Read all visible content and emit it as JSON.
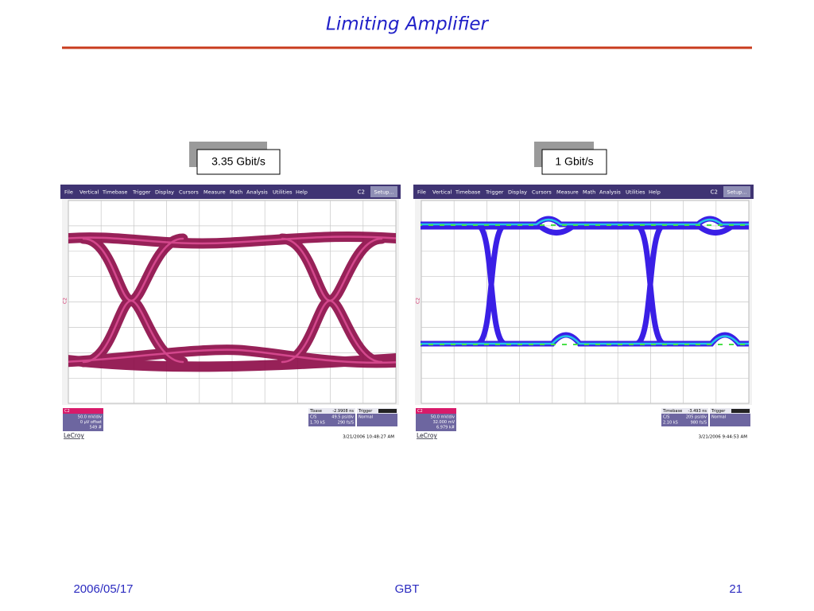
{
  "header": {
    "title": "Limiting Amplifier"
  },
  "scopes": [
    {
      "label": "3.35 Gbit/s",
      "menu": [
        "File",
        "Vertical",
        "Timebase",
        "Trigger",
        "Display",
        "Cursors",
        "Measure",
        "Math",
        "Analysis",
        "Utilities",
        "Help"
      ],
      "channel": "C2",
      "setup": "Setup...",
      "channel_info": [
        "50.0 mV/div",
        "0 µV offset",
        "549 #"
      ],
      "timebase": {
        "title": "Tbase",
        "value": "-2.9908 ns",
        "rows": [
          [
            "C/S",
            "49.5 ps/div"
          ],
          [
            "1.70 kS",
            "290 fs/S"
          ]
        ]
      },
      "trigger": {
        "title": "Trigger",
        "mode": "Normal"
      },
      "brand": "LeCroy",
      "timestamp": "3/21/2006 10:48:27 AM"
    },
    {
      "label": "1 Gbit/s",
      "menu": [
        "File",
        "Vertical",
        "Timebase",
        "Trigger",
        "Display",
        "Cursors",
        "Measure",
        "Math",
        "Analysis",
        "Utilities",
        "Help"
      ],
      "channel": "C2",
      "setup": "Setup...",
      "channel_info": [
        "50.0 mV/div",
        "32.000 mV",
        "6.979 k#"
      ],
      "timebase": {
        "title": "Timebase",
        "value": "-3.493 ns",
        "rows": [
          [
            "C/S",
            "205 ps/div"
          ],
          [
            "2.10 kS",
            "980 fs/S"
          ]
        ]
      },
      "trigger": {
        "title": "Trigger",
        "mode": "Normal"
      },
      "brand": "LeCroy",
      "timestamp": "3/21/2006 9:44:53 AM"
    }
  ],
  "footer": {
    "date": "2006/05/17",
    "center": "GBT",
    "page": "21"
  }
}
